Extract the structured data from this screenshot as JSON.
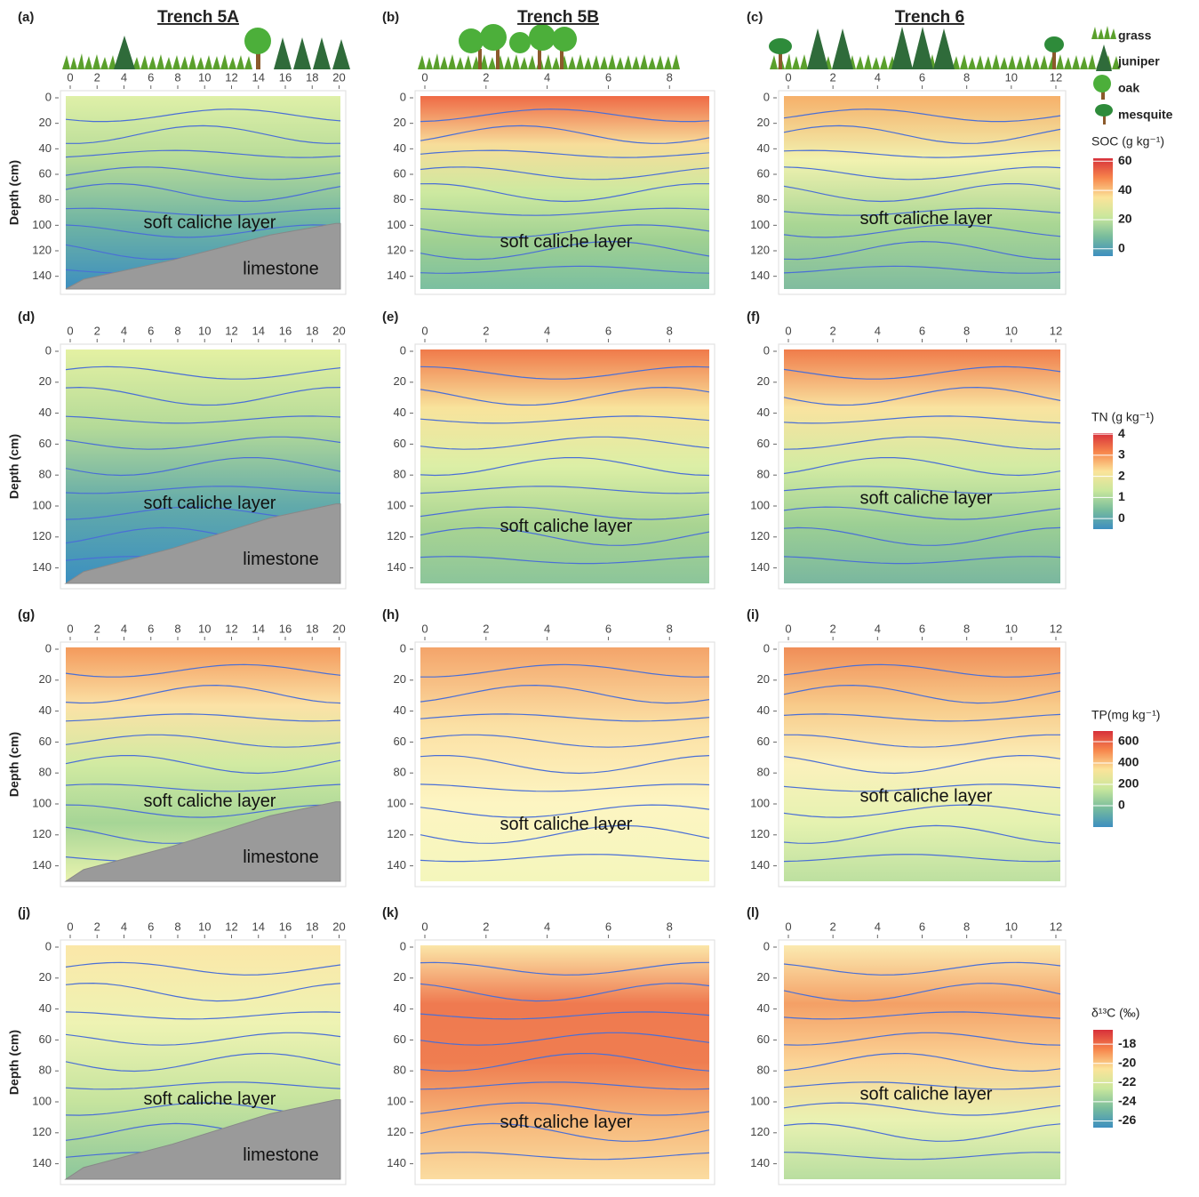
{
  "chart_data": [
    {
      "type": "contour",
      "panel_label": "(a)",
      "title": "Trench 5A",
      "ylabel": "Depth (cm)",
      "xlim": [
        0,
        20.1
      ],
      "xticks": [
        0,
        2,
        4,
        6,
        8,
        10,
        12,
        14,
        16,
        18,
        20
      ],
      "ylim": [
        0,
        150
      ],
      "yticks": [
        0,
        20,
        40,
        60,
        80,
        100,
        120,
        140
      ],
      "annotations": [
        "soft caliche layer",
        "limestone"
      ],
      "colors": [
        "#dff0a8",
        "#b6db98",
        "#6eb3a4",
        "#3d8fbf"
      ]
    },
    {
      "type": "contour",
      "panel_label": "(b)",
      "title": "Trench 5B",
      "xlim": [
        0,
        9.3
      ],
      "xticks": [
        0,
        2,
        4,
        6,
        8
      ],
      "ylim": [
        0,
        150
      ],
      "yticks": [
        0,
        20,
        40,
        60,
        80,
        100,
        120,
        140
      ],
      "annotations": [
        "soft caliche layer"
      ],
      "colors": [
        "#ef6a45",
        "#f7dd9a",
        "#cde9a0",
        "#9fd092",
        "#7bbfa0"
      ]
    },
    {
      "type": "contour",
      "panel_label": "(c)",
      "title": "Trench 6",
      "xlim": [
        0,
        12.2
      ],
      "xticks": [
        0,
        2,
        4,
        6,
        8,
        10,
        12
      ],
      "ylim": [
        0,
        150
      ],
      "yticks": [
        0,
        20,
        40,
        60,
        80,
        100,
        120,
        140
      ],
      "annotations": [
        "soft caliche layer"
      ],
      "colors": [
        "#f6b06a",
        "#f1f2b0",
        "#a9d694",
        "#80bc9f"
      ]
    },
    {
      "type": "contour",
      "panel_label": "(d)",
      "ylabel": "Depth (cm)",
      "xlim": [
        0,
        20.1
      ],
      "xticks": [
        0,
        2,
        4,
        6,
        8,
        10,
        12,
        14,
        16,
        18,
        20
      ],
      "ylim": [
        0,
        150
      ],
      "yticks": [
        0,
        20,
        40,
        60,
        80,
        100,
        120,
        140
      ],
      "annotations": [
        "soft caliche layer",
        "limestone"
      ],
      "colors": [
        "#e4f1a3",
        "#b4da98",
        "#62aaaa",
        "#3b8fc0"
      ]
    },
    {
      "type": "contour",
      "panel_label": "(e)",
      "xlim": [
        0,
        9.3
      ],
      "xticks": [
        0,
        2,
        4,
        6,
        8
      ],
      "ylim": [
        0,
        150
      ],
      "yticks": [
        0,
        20,
        40,
        60,
        80,
        100,
        120,
        140
      ],
      "annotations": [
        "soft caliche layer"
      ],
      "colors": [
        "#f07a4a",
        "#f8e39c",
        "#dcefa6",
        "#a9d492",
        "#8cc59a"
      ]
    },
    {
      "type": "contour",
      "panel_label": "(f)",
      "xlim": [
        0,
        12.2
      ],
      "xticks": [
        0,
        2,
        4,
        6,
        8,
        10,
        12
      ],
      "ylim": [
        0,
        150
      ],
      "yticks": [
        0,
        20,
        40,
        60,
        80,
        100,
        120,
        140
      ],
      "annotations": [
        "soft caliche layer"
      ],
      "colors": [
        "#f07c4a",
        "#f9e3a0",
        "#d3eba3",
        "#9ccf94",
        "#7ab79f"
      ]
    },
    {
      "type": "contour",
      "panel_label": "(g)",
      "ylabel": "Depth (cm)",
      "xlim": [
        0,
        20.1
      ],
      "xticks": [
        0,
        2,
        4,
        6,
        8,
        10,
        12,
        14,
        16,
        18,
        20
      ],
      "ylim": [
        0,
        150
      ],
      "yticks": [
        0,
        20,
        40,
        60,
        80,
        100,
        120,
        140
      ],
      "annotations": [
        "soft caliche layer",
        "limestone"
      ],
      "colors": [
        "#f49a5c",
        "#fbe2a6",
        "#d1eaa2",
        "#a6d596",
        "#e9f3ae"
      ]
    },
    {
      "type": "contour",
      "panel_label": "(h)",
      "xlim": [
        0,
        9.3
      ],
      "xticks": [
        0,
        2,
        4,
        6,
        8
      ],
      "ylim": [
        0,
        150
      ],
      "yticks": [
        0,
        20,
        40,
        60,
        80,
        100,
        120,
        140
      ],
      "annotations": [
        "soft caliche layer"
      ],
      "colors": [
        "#f4a46a",
        "#fbe0a4",
        "#fdf5c2",
        "#f4f6bc"
      ]
    },
    {
      "type": "contour",
      "panel_label": "(i)",
      "xlim": [
        0,
        12.2
      ],
      "xticks": [
        0,
        2,
        4,
        6,
        8,
        10,
        12
      ],
      "ylim": [
        0,
        150
      ],
      "yticks": [
        0,
        20,
        40,
        60,
        80,
        100,
        120,
        140
      ],
      "annotations": [
        "soft caliche layer"
      ],
      "colors": [
        "#f08e58",
        "#f8cb8a",
        "#fbf1bc",
        "#e5f2b0",
        "#bde0a0"
      ]
    },
    {
      "type": "contour",
      "panel_label": "(j)",
      "ylabel": "Depth (cm)",
      "xlim": [
        0,
        20.1
      ],
      "xticks": [
        0,
        2,
        4,
        6,
        8,
        10,
        12,
        14,
        16,
        18,
        20
      ],
      "ylim": [
        0,
        150
      ],
      "yticks": [
        0,
        20,
        40,
        60,
        80,
        100,
        120,
        140
      ],
      "annotations": [
        "soft caliche layer",
        "limestone"
      ],
      "colors": [
        "#fbe7a8",
        "#eef3b3",
        "#c6e49e",
        "#8cc69b"
      ]
    },
    {
      "type": "contour",
      "panel_label": "(k)",
      "xlim": [
        0,
        9.3
      ],
      "xticks": [
        0,
        2,
        4,
        6,
        8
      ],
      "ylim": [
        0,
        150
      ],
      "yticks": [
        0,
        20,
        40,
        60,
        80,
        100,
        120,
        140
      ],
      "annotations": [
        "soft caliche layer"
      ],
      "colors": [
        "#fbe6a8",
        "#ef7a50",
        "#ef7d50",
        "#f6b77a",
        "#fbdca0"
      ]
    },
    {
      "type": "contour",
      "panel_label": "(l)",
      "xlim": [
        0,
        12.2
      ],
      "xticks": [
        0,
        2,
        4,
        6,
        8,
        10,
        12
      ],
      "ylim": [
        0,
        150
      ],
      "yticks": [
        0,
        20,
        40,
        60,
        80,
        100,
        120,
        140
      ],
      "annotations": [
        "soft caliche layer"
      ],
      "colors": [
        "#fbeab0",
        "#f4a066",
        "#fbd496",
        "#e9f2b2",
        "#b9dea0"
      ]
    }
  ],
  "vegetation_legend": [
    "grass",
    "juniper",
    "oak",
    "mesquite"
  ],
  "colorbars": [
    {
      "label": "SOC (g kg⁻¹)",
      "lim": [
        -5,
        62
      ],
      "ticks": [
        60,
        40,
        20,
        0
      ],
      "colors": [
        "#d7303a",
        "#f7864c",
        "#fbe49a",
        "#c9e79c",
        "#78bc9c",
        "#3d8fbf"
      ]
    },
    {
      "label": "TN (g kg⁻¹)",
      "lim": [
        -0.5,
        4.05
      ],
      "ticks": [
        4,
        3,
        2,
        1,
        0
      ],
      "colors": [
        "#d7303a",
        "#f7864c",
        "#fbe49a",
        "#c9e79c",
        "#78bc9c",
        "#3d8fbf"
      ]
    },
    {
      "label": "TP(mg kg⁻¹)",
      "lim": [
        -200,
        700
      ],
      "ticks": [
        600,
        400,
        200,
        0
      ],
      "colors": [
        "#d7303a",
        "#f7864c",
        "#fbe49a",
        "#c9e79c",
        "#78bc9c",
        "#3d8fbf"
      ]
    },
    {
      "label": "δ¹³C (‰)",
      "lim": [
        -26.7,
        -16.5
      ],
      "ticks": [
        -18,
        -20,
        -22,
        -24,
        -26
      ],
      "colors": [
        "#d7303a",
        "#f7864c",
        "#fbe49a",
        "#c9e79c",
        "#78bc9c",
        "#3d8fbf"
      ]
    }
  ]
}
